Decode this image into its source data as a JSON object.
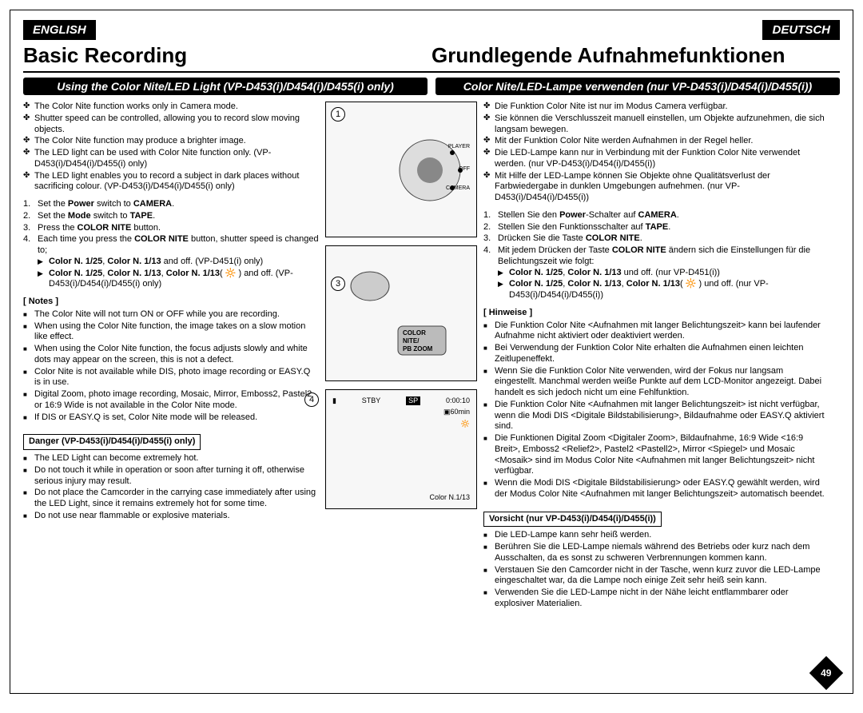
{
  "lang": {
    "en": "ENGLISH",
    "de": "DEUTSCH"
  },
  "title": {
    "en": "Basic Recording",
    "de": "Grundlegende Aufnahmefunktionen"
  },
  "subbar": {
    "en": "Using the Color Nite/LED Light (VP-D453(i)/D454(i)/D455(i) only)",
    "de": "Color Nite/LED-Lampe verwenden (nur VP-D453(i)/D454(i)/D455(i))"
  },
  "en_bullets": [
    "The Color Nite function works only in Camera mode.",
    "Shutter speed can be controlled, allowing you to record slow moving objects.",
    "The Color Nite function may produce a brighter image.",
    "The LED light can be used with Color Nite function only. (VP-D453(i)/D454(i)/D455(i) only)",
    "The LED light enables you to record a subject in dark places without sacrificing colour. (VP-D453(i)/D454(i)/D455(i) only)"
  ],
  "de_bullets": [
    "Die Funktion Color Nite ist nur im Modus Camera verfügbar.",
    "Sie können die Verschlusszeit manuell einstellen, um Objekte aufzunehmen, die sich langsam bewegen.",
    "Mit der Funktion Color Nite werden Aufnahmen in der Regel heller.",
    "Die LED-Lampe kann nur in Verbindung mit der Funktion Color Nite verwendet werden. (nur VP-D453(i)/D454(i)/D455(i))",
    "Mit Hilfe der LED-Lampe können Sie Objekte ohne Qualitätsverlust der Farbwiedergabe in dunklen Umgebungen aufnehmen. (nur VP-D453(i)/D454(i)/D455(i))"
  ],
  "en_steps": {
    "s1": "Set the <b>Power</b> switch to <b>CAMERA</b>.",
    "s2": "Set the <b>Mode</b> switch to <b>TAPE</b>.",
    "s3": "Press the <b>COLOR NITE</b> button.",
    "s4": "Each time you press the <b>COLOR NITE</b> button, shutter speed is changed to;",
    "s4a": "<b>Color N. 1/25</b>, <b>Color N. 1/13</b> and off. (VP-D451(i) only)",
    "s4b": "<b>Color N. 1/25</b>, <b>Color N. 1/13</b>, <b>Color N. 1/13</b>( 🔆 ) and off. (VP-D453(i)/D454(i)/D455(i) only)"
  },
  "de_steps": {
    "s1": "Stellen Sie den <b>Power</b>-Schalter auf <b>CAMERA</b>.",
    "s2": "Stellen Sie den Funktionsschalter auf <b>TAPE</b>.",
    "s3": "Drücken Sie die Taste <b>COLOR NITE</b>.",
    "s4": "Mit jedem Drücken der Taste <b>COLOR NITE</b> ändern sich die Einstellungen für die Belichtungszeit wie folgt:",
    "s4a": "<b>Color N. 1/25</b>, <b>Color N. 1/13</b> und off. (nur VP-D451(i))",
    "s4b": "<b>Color N. 1/25</b>, <b>Color N. 1/13</b>, <b>Color N. 1/13</b>( 🔆 ) und off. (nur VP-D453(i)/D454(i)/D455(i))"
  },
  "notes_head": {
    "en": "[ Notes ]",
    "de": "[ Hinweise ]"
  },
  "en_notes": [
    "The Color Nite will not turn ON or OFF while you are recording.",
    "When using the Color Nite function, the image takes on a slow motion like effect.",
    "When using the Color Nite function, the focus adjusts slowly and white dots may appear on the screen, this is not a defect.",
    "Color Nite is not available while DIS, photo image recording or EASY.Q is in use.",
    "Digital Zoom, photo image recording, Mosaic, Mirror, Emboss2, Pastel2 or 16:9 Wide is not available in the Color Nite mode.",
    "If DIS or EASY.Q is set, Color Nite mode will be released."
  ],
  "de_notes": [
    "Die Funktion Color Nite <Aufnahmen mit langer Belichtungszeit> kann bei laufender Aufnahme nicht aktiviert oder deaktiviert werden.",
    "Bei Verwendung der Funktion Color Nite erhalten die Aufnahmen einen leichten Zeitlupeneffekt.",
    "Wenn Sie die Funktion Color Nite verwenden, wird der Fokus nur langsam eingestellt. Manchmal werden weiße Punkte auf dem LCD-Monitor angezeigt. Dabei handelt es sich jedoch nicht um eine Fehlfunktion.",
    "Die Funktion Color Nite <Aufnahmen mit langer Belichtungszeit> ist nicht verfügbar, wenn die Modi DIS <Digitale Bildstabilisierung>, Bildaufnahme oder EASY.Q aktiviert sind.",
    "Die Funktionen Digital Zoom <Digitaler Zoom>, Bildaufnahme, 16:9 Wide <16:9 Breit>, Emboss2 <Relief2>, Pastel2 <Pastell2>, Mirror <Spiegel> und Mosaic <Mosaik> sind im Modus Color Nite <Aufnahmen mit langer Belichtungszeit> nicht verfügbar.",
    "Wenn die Modi DIS <Digitale Bildstabilisierung> oder EASY.Q gewählt werden, wird der Modus Color Nite <Aufnahmen mit langer Belichtungszeit> automatisch beendet."
  ],
  "danger_head": {
    "en": "Danger (VP-D453(i)/D454(i)/D455(i) only)",
    "de": "Vorsicht (nur VP-D453(i)/D454(i)/D455(i))"
  },
  "en_danger": [
    "The LED Light can become extremely hot.",
    "Do not touch it while in operation or soon after turning it off, otherwise serious injury may result.",
    "Do not place the Camcorder in the carrying case immediately after using the LED Light, since it remains extremely hot for some time.",
    "Do not use near flammable or explosive materials."
  ],
  "de_danger": [
    "Die LED-Lampe kann sehr heiß werden.",
    "Berühren Sie die LED-Lampe niemals während des Betriebs oder kurz nach dem Ausschalten, da es sonst zu schweren Verbrennungen kommen kann.",
    "Verstauen Sie den Camcorder nicht in der Tasche, wenn kurz zuvor die LED-Lampe eingeschaltet war, da die Lampe noch einige Zeit sehr heiß sein kann.",
    "Verwenden Sie die LED-Lampe nicht in der Nähe leicht entflammbarer oder explosiver Materialien."
  ],
  "diagram1": {
    "num": "1",
    "switch": {
      "player": "PLAYER",
      "off": "OFF",
      "camera": "CAMERA"
    }
  },
  "diagram3": {
    "num": "3",
    "btn1": "COLOR",
    "btn2": "NITE/",
    "btn3": "PB ZOOM"
  },
  "diagram4": {
    "num": "4",
    "stby": "STBY",
    "sp": "SP",
    "time": "0:00:10",
    "batt": "60min",
    "mode": "Color N.1/13"
  },
  "page_num": "49"
}
